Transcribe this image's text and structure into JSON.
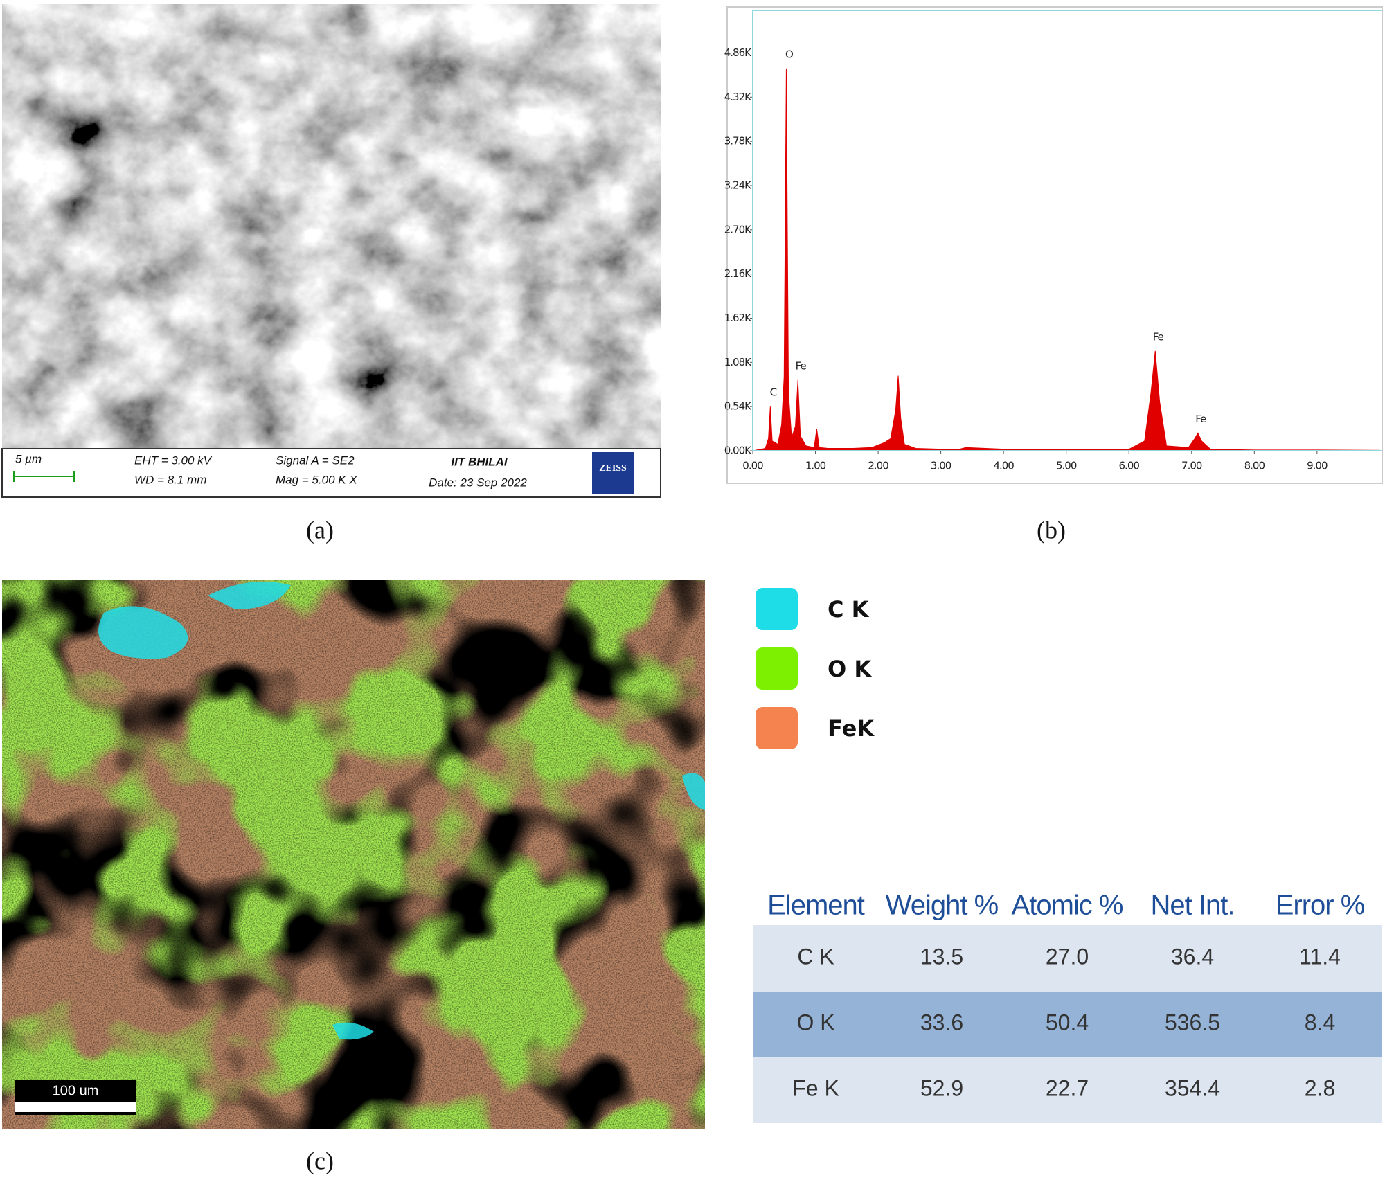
{
  "labels": [
    "(a)",
    "(b)",
    "(c)"
  ],
  "sem_info": {
    "scale": "5 µm",
    "eht": "EHT =  3.00 kV",
    "wd": "WD =  8.1 mm",
    "signal": "Signal A = SE2",
    "mag": "Mag =    5.00 K X",
    "institute": "IIT BHILAI",
    "date": "Date: 23 Sep 2022",
    "brand": "ZEISS"
  },
  "map_scale": "100 um",
  "legend": [
    {
      "name": "C K",
      "color": "#1fdde6"
    },
    {
      "name": "O K",
      "color": "#7cf000"
    },
    {
      "name": "FeK",
      "color": "#f4834f"
    }
  ],
  "table": {
    "header": [
      "Element",
      "Weight %",
      "Atomic %",
      "Net Int.",
      "Error %"
    ],
    "rows": [
      [
        "C  K",
        "13.5",
        "27.0",
        "36.4",
        "11.4"
      ],
      [
        "O  K",
        "33.6",
        "50.4",
        "536.5",
        "8.4"
      ],
      [
        "Fe K",
        "52.9",
        "22.7",
        "354.4",
        "2.8"
      ]
    ]
  },
  "chart_data": {
    "type": "area",
    "color": "#e00000",
    "x": [
      0,
      0.2,
      0.25,
      0.28,
      0.31,
      0.4,
      0.46,
      0.5,
      0.535,
      0.57,
      0.62,
      0.68,
      0.72,
      0.76,
      0.85,
      0.98,
      1.02,
      1.06,
      1.2,
      1.6,
      1.9,
      2.1,
      2.2,
      2.28,
      2.32,
      2.36,
      2.42,
      2.6,
      3.0,
      3.3,
      3.4,
      4.0,
      5.0,
      6.0,
      6.25,
      6.35,
      6.42,
      6.49,
      6.6,
      6.95,
      7.05,
      7.1,
      7.16,
      7.3,
      8.0,
      9.0,
      10.0
    ],
    "values": [
      0,
      30,
      150,
      540,
      120,
      80,
      320,
      900,
      4670,
      700,
      160,
      300,
      864,
      180,
      60,
      40,
      270,
      40,
      30,
      30,
      40,
      100,
      150,
      500,
      918,
      400,
      80,
      30,
      20,
      20,
      40,
      20,
      15,
      20,
      120,
      700,
      1220,
      600,
      60,
      40,
      150,
      216,
      120,
      20,
      10,
      10,
      5
    ],
    "xlim": [
      0,
      10.04
    ],
    "ylim": [
      0,
      5380
    ],
    "xticks": [
      {
        "value": 0,
        "label": "0.00"
      },
      {
        "value": 1,
        "label": "1.00"
      },
      {
        "value": 2,
        "label": "2.00"
      },
      {
        "value": 3,
        "label": "3.00"
      },
      {
        "value": 4,
        "label": "4.00"
      },
      {
        "value": 5,
        "label": "5.00"
      },
      {
        "value": 6,
        "label": "6.00"
      },
      {
        "value": 7,
        "label": "7.00"
      },
      {
        "value": 8,
        "label": "8.00"
      },
      {
        "value": 9,
        "label": "9.00"
      }
    ],
    "yticks": [
      {
        "value": 0,
        "label": "0.00K"
      },
      {
        "value": 540,
        "label": "0.54K"
      },
      {
        "value": 1080,
        "label": "1.08K"
      },
      {
        "value": 1620,
        "label": "1.62K"
      },
      {
        "value": 2160,
        "label": "2.16K"
      },
      {
        "value": 2700,
        "label": "2.70K"
      },
      {
        "value": 3240,
        "label": "3.24K"
      },
      {
        "value": 3780,
        "label": "3.78K"
      },
      {
        "value": 4320,
        "label": "4.32K"
      },
      {
        "value": 4860,
        "label": "4.86K"
      }
    ],
    "annotations": [
      {
        "text": "C",
        "x": 0.28,
        "y": 540
      },
      {
        "text": "O",
        "x": 0.535,
        "y": 4670
      },
      {
        "text": "Fe",
        "x": 0.72,
        "y": 864
      },
      {
        "text": "Fe",
        "x": 6.42,
        "y": 1220
      },
      {
        "text": "Fe",
        "x": 7.1,
        "y": 216
      }
    ]
  }
}
